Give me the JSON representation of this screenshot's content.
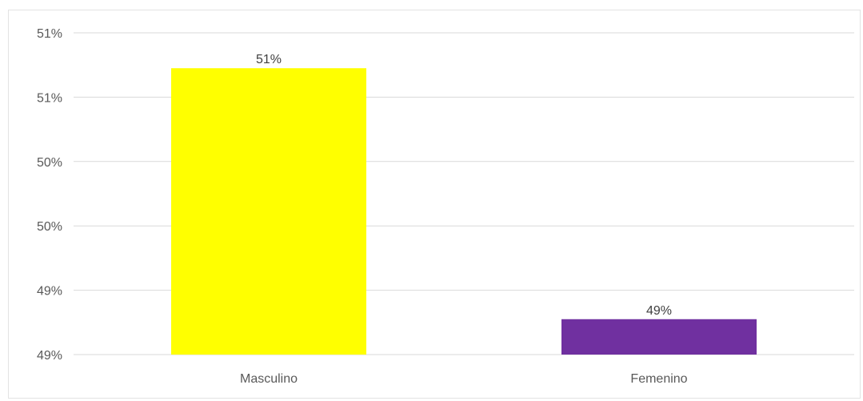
{
  "chart_data": {
    "type": "bar",
    "categories": [
      "Masculino",
      "Femenino"
    ],
    "values": [
      50.78,
      49.22
    ],
    "value_labels": [
      "51%",
      "49%"
    ],
    "colors": [
      "#FFFF00",
      "#7030A0"
    ],
    "y_tick_values": [
      49.0,
      49.25,
      49.5,
      49.75,
      50.0,
      50.25,
      50.5,
      50.75,
      51.0
    ],
    "y_tick_labels": [
      "49%",
      "49%",
      "49%",
      "50%",
      "50%",
      "50%",
      "51%",
      "51%",
      "51%"
    ],
    "y_tick_labels_shown": [
      "49%",
      "49%",
      "50%",
      "50%",
      "51%",
      "51%"
    ],
    "ylim": [
      49.0,
      51.0
    ],
    "grid": true,
    "title": "",
    "xlabel": "",
    "ylabel": ""
  }
}
